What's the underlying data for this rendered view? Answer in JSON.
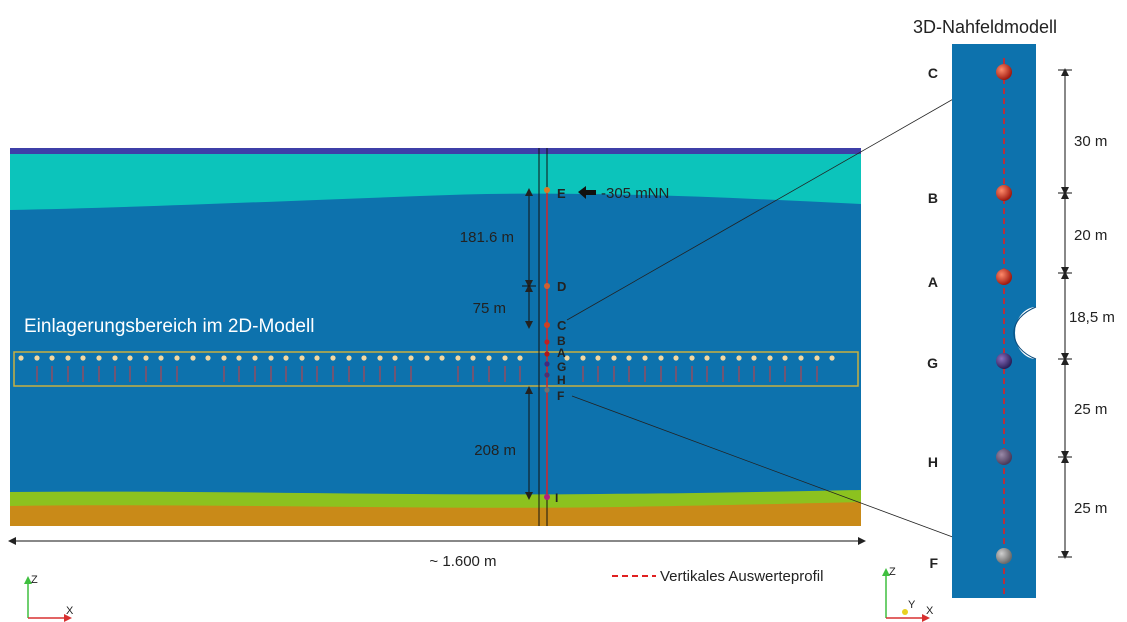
{
  "title_3d": "3D-Nahfeldmodell",
  "label_2d_area": "Einlagerungsbereich im 2D-Modell",
  "width_label": "~ 1.600 m",
  "elevation_label": "-305 mNN",
  "legend_text": "Vertikales Auswerteprofil",
  "profile_color": "#e02020",
  "colors": {
    "top_band": "#3e3fa8",
    "upper_layer": "#0cc4bb",
    "host_rock": "#0d72ad",
    "green_layer": "#8cc21f",
    "bottom_layer": "#c98a18",
    "emplacement_box": "#c8b040"
  },
  "points_2d": [
    "E",
    "D",
    "C",
    "B",
    "A",
    "G",
    "H",
    "F",
    "I"
  ],
  "dims_2d": [
    "181.6 m",
    "75 m",
    "208 m"
  ],
  "points_3d": [
    "C",
    "B",
    "A",
    "G",
    "H",
    "F"
  ],
  "dims_3d": [
    "30 m",
    "20 m",
    "18,5 m",
    "25 m",
    "25 m"
  ],
  "axes": {
    "left": {
      "z": "Z",
      "x": "X"
    },
    "right": {
      "z": "Z",
      "y": "Y",
      "x": "X"
    }
  }
}
